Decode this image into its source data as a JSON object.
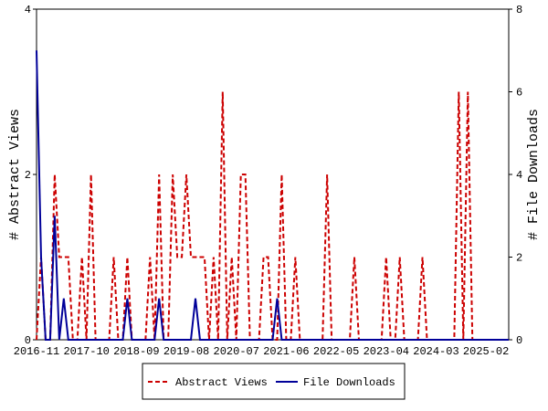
{
  "chart_data": {
    "type": "line",
    "categories": [
      "2016-11",
      null,
      null,
      null,
      null,
      null,
      null,
      null,
      null,
      null,
      null,
      "2017-10",
      null,
      null,
      null,
      null,
      null,
      null,
      null,
      null,
      null,
      null,
      "2018-09",
      null,
      null,
      null,
      null,
      null,
      null,
      null,
      null,
      null,
      null,
      "2019-08",
      null,
      null,
      null,
      null,
      null,
      null,
      null,
      null,
      null,
      null,
      "2020-07",
      null,
      null,
      null,
      null,
      null,
      null,
      null,
      null,
      null,
      null,
      "2021-06",
      null,
      null,
      null,
      null,
      null,
      null,
      null,
      null,
      null,
      null,
      "2022-05",
      null,
      null,
      null,
      null,
      null,
      null,
      null,
      null,
      null,
      null,
      "2023-04",
      null,
      null,
      null,
      null,
      null,
      null,
      null,
      null,
      null,
      null,
      "2024-03",
      null,
      null,
      null,
      null,
      null,
      null,
      null,
      null,
      null,
      null,
      "2025-02",
      null,
      null,
      null,
      null,
      null
    ],
    "ylabel": "# Abstract Views",
    "y2label": "# File Downloads",
    "ylim": [
      0,
      4
    ],
    "yticks": [
      0,
      2,
      4
    ],
    "y2lim": [
      0,
      8
    ],
    "y2ticks": [
      0,
      2,
      4,
      6,
      8
    ],
    "legend": "bottom",
    "series": [
      {
        "name": "Abstract Views",
        "color": "#cc0000",
        "dashed": true,
        "axis": "y",
        "values": [
          0,
          1,
          0,
          0,
          2,
          1,
          1,
          1,
          0,
          0,
          1,
          0,
          2,
          0,
          0,
          0,
          0,
          1,
          0,
          0,
          1,
          0,
          0,
          0,
          0,
          1,
          0,
          2,
          0,
          0,
          2,
          1,
          1,
          2,
          1,
          1,
          1,
          1,
          0,
          1,
          0,
          3,
          0,
          1,
          0,
          2,
          2,
          0,
          0,
          0,
          1,
          1,
          0,
          0,
          2,
          0,
          0,
          1,
          0,
          0,
          0,
          0,
          0,
          0,
          2,
          0,
          0,
          0,
          0,
          0,
          1,
          0,
          0,
          0,
          0,
          0,
          0,
          1,
          0,
          0,
          1,
          0,
          0,
          0,
          0,
          1,
          0,
          0,
          0,
          0,
          0,
          0,
          0,
          3,
          0,
          3,
          0,
          0,
          0,
          0,
          0,
          0,
          0,
          0,
          0
        ]
      },
      {
        "name": "File Downloads",
        "color": "#000099",
        "dashed": false,
        "axis": "y2",
        "values": [
          7,
          2,
          0,
          0,
          3,
          0,
          1,
          0,
          0,
          0,
          0,
          0,
          0,
          0,
          0,
          0,
          0,
          0,
          0,
          0,
          1,
          0,
          0,
          0,
          0,
          0,
          0,
          1,
          0,
          0,
          0,
          0,
          0,
          0,
          0,
          1,
          0,
          0,
          0,
          0,
          0,
          0,
          0,
          0,
          0,
          0,
          0,
          0,
          0,
          0,
          0,
          0,
          0,
          1,
          0,
          0,
          0,
          0,
          0,
          0,
          0,
          0,
          0,
          0,
          0,
          0,
          0,
          0,
          0,
          0,
          0,
          0,
          0,
          0,
          0,
          0,
          0,
          0,
          0,
          0,
          0,
          0,
          0,
          0,
          0,
          0,
          0,
          0,
          0,
          0,
          0,
          0,
          0,
          0,
          0,
          0,
          0,
          0,
          0,
          0,
          0,
          0,
          0,
          0,
          0
        ]
      }
    ]
  }
}
